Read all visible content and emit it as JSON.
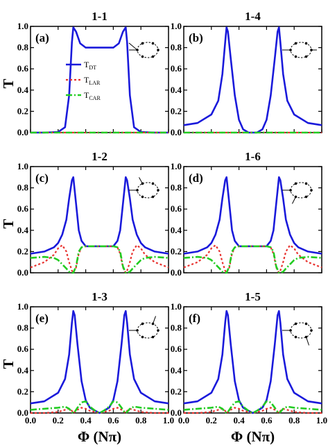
{
  "chart_data": {
    "type": "line",
    "xlabel": "Φ (Nπ)",
    "ylabel": "T",
    "xlim": [
      0.0,
      1.0
    ],
    "ylim": [
      0.0,
      1.0
    ],
    "xticks": [
      "0.0",
      "0.2",
      "0.4",
      "0.6",
      "0.8",
      "1.0"
    ],
    "yticks": [
      "0.0",
      "0.2",
      "0.4",
      "0.6",
      "0.8",
      "1.0"
    ],
    "colors": {
      "T_DT": "#1a1adb",
      "T_LAR": "#e8322f",
      "T_CAR": "#22cc22"
    },
    "legend": {
      "placement": "inside panel (a), center-left",
      "entries": [
        {
          "key": "T_DT",
          "main": "T",
          "sub": "DT"
        },
        {
          "key": "T_LAR",
          "main": "T",
          "sub": "LAR"
        },
        {
          "key": "T_CAR",
          "main": "T",
          "sub": "CAR"
        }
      ]
    },
    "panels": [
      {
        "label": "(a)",
        "title": "1-1",
        "inset": "ring-leads-adjacent-left",
        "x": [
          0.0,
          0.1,
          0.2,
          0.25,
          0.28,
          0.3,
          0.31,
          0.33,
          0.36,
          0.4,
          0.5,
          0.6,
          0.64,
          0.67,
          0.69,
          0.7,
          0.72,
          0.75,
          0.8,
          0.9,
          1.0
        ],
        "series": [
          {
            "key": "T_DT",
            "values": [
              0.0,
              0.0,
              0.005,
              0.05,
              0.35,
              0.85,
              0.99,
              0.95,
              0.84,
              0.8,
              0.8,
              0.8,
              0.84,
              0.95,
              0.99,
              0.85,
              0.35,
              0.05,
              0.005,
              0.0,
              0.0
            ]
          },
          {
            "key": "T_LAR",
            "values": [
              0.0,
              0.0,
              0.0,
              0.0,
              0.0,
              0.0,
              0.0,
              0.0,
              0.0,
              0.0,
              0.0,
              0.0,
              0.0,
              0.0,
              0.0,
              0.0,
              0.0,
              0.0,
              0.0,
              0.0,
              0.0
            ]
          },
          {
            "key": "T_CAR",
            "values": [
              0.0,
              0.0,
              0.0,
              0.0,
              0.0,
              0.0,
              0.0,
              0.0,
              0.0,
              0.0,
              0.0,
              0.0,
              0.0,
              0.0,
              0.0,
              0.0,
              0.0,
              0.0,
              0.0,
              0.0,
              0.0
            ]
          }
        ]
      },
      {
        "label": "(b)",
        "title": "1-4",
        "inset": "ring-leads-opposite",
        "x": [
          0.0,
          0.1,
          0.2,
          0.25,
          0.28,
          0.3,
          0.31,
          0.32,
          0.34,
          0.37,
          0.4,
          0.43,
          0.47,
          0.5,
          0.53,
          0.57,
          0.6,
          0.63,
          0.66,
          0.68,
          0.69,
          0.7,
          0.72,
          0.75,
          0.8,
          0.9,
          1.0
        ],
        "series": [
          {
            "key": "T_DT",
            "values": [
              0.07,
              0.09,
              0.17,
              0.3,
              0.55,
              0.85,
              0.99,
              0.95,
              0.7,
              0.35,
              0.12,
              0.03,
              0.0,
              0.0,
              0.0,
              0.03,
              0.12,
              0.35,
              0.7,
              0.95,
              0.99,
              0.85,
              0.55,
              0.3,
              0.17,
              0.09,
              0.07
            ]
          },
          {
            "key": "T_LAR",
            "values": [
              0.0,
              0.0,
              0.0,
              0.0,
              0.0,
              0.0,
              0.0,
              0.0,
              0.0,
              0.0,
              0.0,
              0.0,
              0.0,
              0.0,
              0.0,
              0.0,
              0.0,
              0.0,
              0.0,
              0.0,
              0.0,
              0.0,
              0.0,
              0.0,
              0.0,
              0.0,
              0.0
            ]
          },
          {
            "key": "T_CAR",
            "values": [
              0.0,
              0.0,
              0.0,
              0.0,
              0.0,
              0.0,
              0.0,
              0.0,
              0.0,
              0.0,
              0.0,
              0.0,
              0.0,
              0.0,
              0.0,
              0.0,
              0.0,
              0.0,
              0.0,
              0.0,
              0.0,
              0.0,
              0.0,
              0.0,
              0.0,
              0.0,
              0.0
            ]
          }
        ]
      },
      {
        "label": "(c)",
        "title": "1-2",
        "inset": "ring-leads-neighbor-top",
        "x": [
          0.0,
          0.1,
          0.17,
          0.2,
          0.23,
          0.26,
          0.28,
          0.3,
          0.31,
          0.33,
          0.35,
          0.37,
          0.4,
          0.5,
          0.6,
          0.63,
          0.65,
          0.67,
          0.69,
          0.7,
          0.72,
          0.74,
          0.77,
          0.8,
          0.83,
          0.9,
          1.0
        ],
        "series": [
          {
            "key": "T_DT",
            "values": [
              0.18,
              0.2,
              0.24,
              0.28,
              0.36,
              0.5,
              0.7,
              0.87,
              0.9,
              0.65,
              0.4,
              0.3,
              0.25,
              0.25,
              0.25,
              0.3,
              0.4,
              0.65,
              0.9,
              0.87,
              0.7,
              0.5,
              0.36,
              0.28,
              0.24,
              0.2,
              0.18
            ]
          },
          {
            "key": "T_LAR",
            "values": [
              0.05,
              0.1,
              0.17,
              0.23,
              0.26,
              0.2,
              0.1,
              0.02,
              0.0,
              0.05,
              0.18,
              0.24,
              0.25,
              0.25,
              0.25,
              0.24,
              0.18,
              0.05,
              0.0,
              0.02,
              0.1,
              0.2,
              0.26,
              0.23,
              0.17,
              0.1,
              0.05
            ]
          },
          {
            "key": "T_CAR",
            "values": [
              0.14,
              0.15,
              0.14,
              0.12,
              0.08,
              0.04,
              0.01,
              0.0,
              0.0,
              0.06,
              0.2,
              0.24,
              0.25,
              0.25,
              0.25,
              0.24,
              0.2,
              0.06,
              0.0,
              0.0,
              0.01,
              0.04,
              0.08,
              0.12,
              0.14,
              0.15,
              0.14
            ]
          }
        ]
      },
      {
        "label": "(d)",
        "title": "1-6",
        "inset": "ring-leads-neighbor-bottom",
        "x": [
          0.0,
          0.1,
          0.17,
          0.2,
          0.23,
          0.26,
          0.28,
          0.3,
          0.31,
          0.33,
          0.35,
          0.37,
          0.4,
          0.5,
          0.6,
          0.63,
          0.65,
          0.67,
          0.69,
          0.7,
          0.72,
          0.74,
          0.77,
          0.8,
          0.83,
          0.9,
          1.0
        ],
        "series": [
          {
            "key": "T_DT",
            "values": [
              0.18,
              0.2,
              0.24,
              0.28,
              0.36,
              0.5,
              0.7,
              0.87,
              0.9,
              0.65,
              0.4,
              0.3,
              0.25,
              0.25,
              0.25,
              0.3,
              0.4,
              0.65,
              0.9,
              0.87,
              0.7,
              0.5,
              0.36,
              0.28,
              0.24,
              0.2,
              0.18
            ]
          },
          {
            "key": "T_LAR",
            "values": [
              0.05,
              0.1,
              0.17,
              0.23,
              0.26,
              0.2,
              0.1,
              0.02,
              0.0,
              0.05,
              0.18,
              0.24,
              0.25,
              0.25,
              0.25,
              0.24,
              0.18,
              0.05,
              0.0,
              0.02,
              0.1,
              0.2,
              0.26,
              0.23,
              0.17,
              0.1,
              0.05
            ]
          },
          {
            "key": "T_CAR",
            "values": [
              0.14,
              0.15,
              0.14,
              0.12,
              0.08,
              0.04,
              0.01,
              0.0,
              0.0,
              0.06,
              0.2,
              0.24,
              0.25,
              0.25,
              0.25,
              0.24,
              0.2,
              0.06,
              0.0,
              0.0,
              0.01,
              0.04,
              0.08,
              0.12,
              0.14,
              0.15,
              0.14
            ]
          }
        ]
      },
      {
        "label": "(e)",
        "title": "1-3",
        "inset": "ring-leads-second-neighbor-top",
        "x": [
          0.0,
          0.1,
          0.2,
          0.25,
          0.28,
          0.3,
          0.31,
          0.32,
          0.34,
          0.37,
          0.4,
          0.43,
          0.47,
          0.5,
          0.53,
          0.57,
          0.6,
          0.63,
          0.66,
          0.68,
          0.69,
          0.7,
          0.72,
          0.75,
          0.8,
          0.9,
          1.0
        ],
        "series": [
          {
            "key": "T_DT",
            "values": [
              0.09,
              0.11,
              0.19,
              0.32,
              0.55,
              0.85,
              0.96,
              0.92,
              0.65,
              0.3,
              0.12,
              0.05,
              0.02,
              0.0,
              0.02,
              0.05,
              0.12,
              0.3,
              0.65,
              0.92,
              0.96,
              0.85,
              0.55,
              0.32,
              0.19,
              0.11,
              0.09
            ]
          },
          {
            "key": "T_LAR",
            "values": [
              0.0,
              0.0,
              0.01,
              0.03,
              0.04,
              0.02,
              0.0,
              0.01,
              0.03,
              0.05,
              0.04,
              0.02,
              0.01,
              0.0,
              0.01,
              0.02,
              0.04,
              0.05,
              0.03,
              0.01,
              0.0,
              0.02,
              0.04,
              0.03,
              0.01,
              0.0,
              0.0
            ]
          },
          {
            "key": "T_CAR",
            "values": [
              0.03,
              0.04,
              0.05,
              0.06,
              0.04,
              0.01,
              0.0,
              0.01,
              0.05,
              0.1,
              0.11,
              0.06,
              0.02,
              0.0,
              0.02,
              0.06,
              0.11,
              0.1,
              0.05,
              0.01,
              0.0,
              0.01,
              0.04,
              0.06,
              0.05,
              0.04,
              0.03
            ]
          }
        ]
      },
      {
        "label": "(f)",
        "title": "1-5",
        "inset": "ring-leads-second-neighbor-bottom",
        "x": [
          0.0,
          0.1,
          0.2,
          0.25,
          0.28,
          0.3,
          0.31,
          0.32,
          0.34,
          0.37,
          0.4,
          0.43,
          0.47,
          0.5,
          0.53,
          0.57,
          0.6,
          0.63,
          0.66,
          0.68,
          0.69,
          0.7,
          0.72,
          0.75,
          0.8,
          0.9,
          1.0
        ],
        "series": [
          {
            "key": "T_DT",
            "values": [
              0.09,
              0.11,
              0.19,
              0.32,
              0.55,
              0.85,
              0.96,
              0.92,
              0.65,
              0.3,
              0.12,
              0.05,
              0.02,
              0.0,
              0.02,
              0.05,
              0.12,
              0.3,
              0.65,
              0.92,
              0.96,
              0.85,
              0.55,
              0.32,
              0.19,
              0.11,
              0.09
            ]
          },
          {
            "key": "T_LAR",
            "values": [
              0.0,
              0.0,
              0.01,
              0.03,
              0.04,
              0.02,
              0.0,
              0.01,
              0.03,
              0.05,
              0.04,
              0.02,
              0.01,
              0.0,
              0.01,
              0.02,
              0.04,
              0.05,
              0.03,
              0.01,
              0.0,
              0.02,
              0.04,
              0.03,
              0.01,
              0.0,
              0.0
            ]
          },
          {
            "key": "T_CAR",
            "values": [
              0.03,
              0.04,
              0.05,
              0.06,
              0.04,
              0.01,
              0.0,
              0.01,
              0.05,
              0.1,
              0.11,
              0.06,
              0.02,
              0.0,
              0.02,
              0.06,
              0.11,
              0.1,
              0.05,
              0.01,
              0.0,
              0.01,
              0.04,
              0.06,
              0.05,
              0.04,
              0.03
            ]
          }
        ]
      }
    ]
  }
}
